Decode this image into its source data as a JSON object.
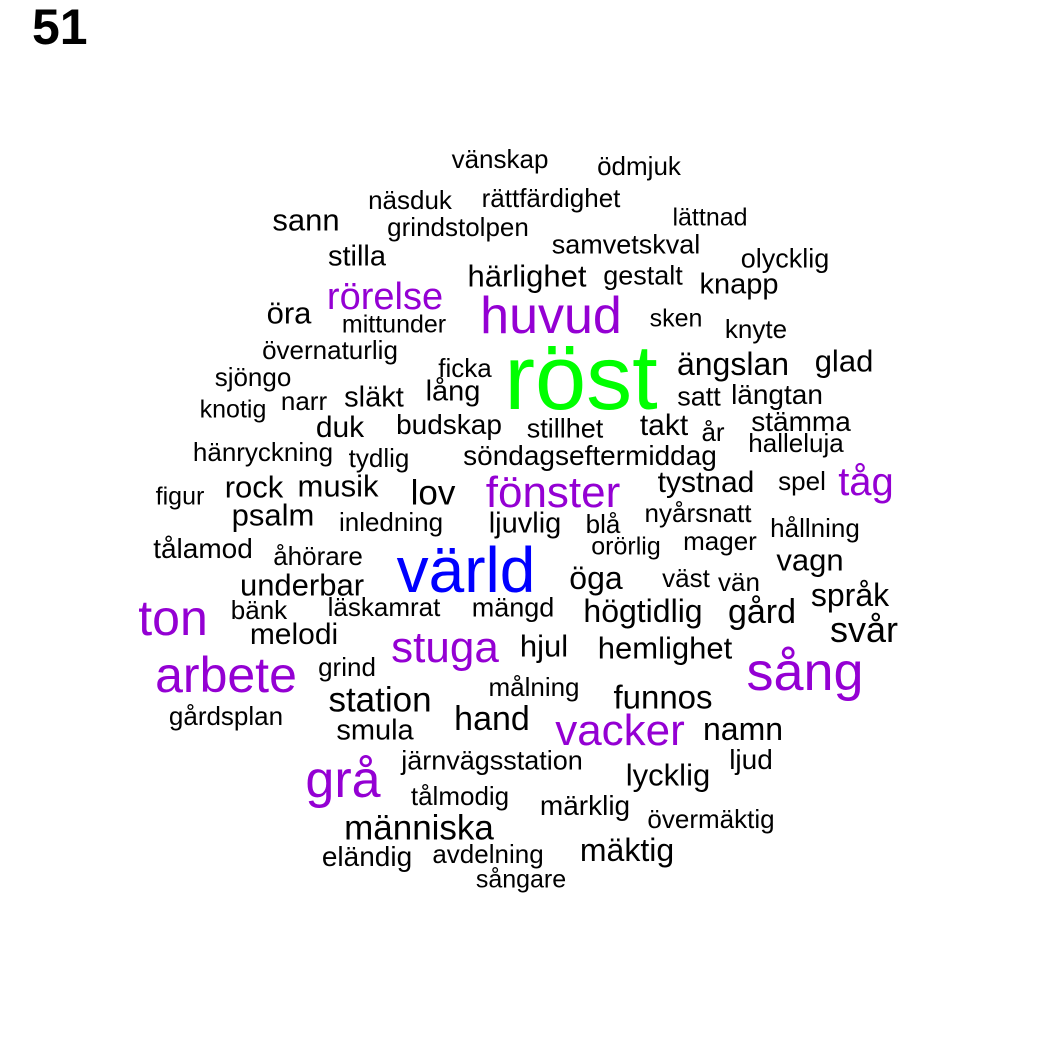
{
  "page_label": "51",
  "colors": {
    "large": "#00ff00",
    "medium": "#0000ff",
    "small": "#9400d3",
    "default": "#000000"
  },
  "words": [
    {
      "text": "röst",
      "tier": "large"
    },
    {
      "text": "värld",
      "tier": "medium"
    },
    {
      "text": "huvud",
      "tier": "small"
    },
    {
      "text": "fönster",
      "tier": "small"
    },
    {
      "text": "sång",
      "tier": "small"
    },
    {
      "text": "arbete",
      "tier": "small"
    },
    {
      "text": "ton",
      "tier": "small"
    },
    {
      "text": "grå",
      "tier": "small"
    },
    {
      "text": "stuga",
      "tier": "small"
    },
    {
      "text": "vacker",
      "tier": "small"
    },
    {
      "text": "rörelse",
      "tier": "small"
    },
    {
      "text": "tåg",
      "tier": "small"
    },
    {
      "text": "vänskap",
      "tier": "default"
    },
    {
      "text": "ödmjuk",
      "tier": "default"
    },
    {
      "text": "näsduk",
      "tier": "default"
    },
    {
      "text": "rättfärdighet",
      "tier": "default"
    },
    {
      "text": "sann",
      "tier": "default"
    },
    {
      "text": "grindstolpen",
      "tier": "default"
    },
    {
      "text": "lättnad",
      "tier": "default"
    },
    {
      "text": "samvetskval",
      "tier": "default"
    },
    {
      "text": "stilla",
      "tier": "default"
    },
    {
      "text": "olycklig",
      "tier": "default"
    },
    {
      "text": "härlighet",
      "tier": "default"
    },
    {
      "text": "gestalt",
      "tier": "default"
    },
    {
      "text": "knapp",
      "tier": "default"
    },
    {
      "text": "öra",
      "tier": "default"
    },
    {
      "text": "mittunder",
      "tier": "default"
    },
    {
      "text": "sken",
      "tier": "default"
    },
    {
      "text": "knyte",
      "tier": "default"
    },
    {
      "text": "övernaturlig",
      "tier": "default"
    },
    {
      "text": "ficka",
      "tier": "default"
    },
    {
      "text": "ängslan",
      "tier": "default"
    },
    {
      "text": "glad",
      "tier": "default"
    },
    {
      "text": "sjöngo",
      "tier": "default"
    },
    {
      "text": "lång",
      "tier": "default"
    },
    {
      "text": "satt",
      "tier": "default"
    },
    {
      "text": "längtan",
      "tier": "default"
    },
    {
      "text": "knotig",
      "tier": "default"
    },
    {
      "text": "narr",
      "tier": "default"
    },
    {
      "text": "släkt",
      "tier": "default"
    },
    {
      "text": "stämma",
      "tier": "default"
    },
    {
      "text": "duk",
      "tier": "default"
    },
    {
      "text": "budskap",
      "tier": "default"
    },
    {
      "text": "stillhet",
      "tier": "default"
    },
    {
      "text": "takt",
      "tier": "default"
    },
    {
      "text": "år",
      "tier": "default"
    },
    {
      "text": "halleluja",
      "tier": "default"
    },
    {
      "text": "hänryckning",
      "tier": "default"
    },
    {
      "text": "tydlig",
      "tier": "default"
    },
    {
      "text": "söndagseftermiddag",
      "tier": "default"
    },
    {
      "text": "tystnad",
      "tier": "default"
    },
    {
      "text": "spel",
      "tier": "default"
    },
    {
      "text": "figur",
      "tier": "default"
    },
    {
      "text": "rock",
      "tier": "default"
    },
    {
      "text": "musik",
      "tier": "default"
    },
    {
      "text": "lov",
      "tier": "default"
    },
    {
      "text": "nyårsnatt",
      "tier": "default"
    },
    {
      "text": "psalm",
      "tier": "default"
    },
    {
      "text": "inledning",
      "tier": "default"
    },
    {
      "text": "ljuvlig",
      "tier": "default"
    },
    {
      "text": "blå",
      "tier": "default"
    },
    {
      "text": "hållning",
      "tier": "default"
    },
    {
      "text": "orörlig",
      "tier": "default"
    },
    {
      "text": "mager",
      "tier": "default"
    },
    {
      "text": "tålamod",
      "tier": "default"
    },
    {
      "text": "åhörare",
      "tier": "default"
    },
    {
      "text": "vagn",
      "tier": "default"
    },
    {
      "text": "öga",
      "tier": "default"
    },
    {
      "text": "väst",
      "tier": "default"
    },
    {
      "text": "vän",
      "tier": "default"
    },
    {
      "text": "underbar",
      "tier": "default"
    },
    {
      "text": "språk",
      "tier": "default"
    },
    {
      "text": "bänk",
      "tier": "default"
    },
    {
      "text": "läskamrat",
      "tier": "default"
    },
    {
      "text": "mängd",
      "tier": "default"
    },
    {
      "text": "högtidlig",
      "tier": "default"
    },
    {
      "text": "gård",
      "tier": "default"
    },
    {
      "text": "svår",
      "tier": "default"
    },
    {
      "text": "melodi",
      "tier": "default"
    },
    {
      "text": "hjul",
      "tier": "default"
    },
    {
      "text": "hemlighet",
      "tier": "default"
    },
    {
      "text": "grind",
      "tier": "default"
    },
    {
      "text": "målning",
      "tier": "default"
    },
    {
      "text": "station",
      "tier": "default"
    },
    {
      "text": "funnos",
      "tier": "default"
    },
    {
      "text": "gårdsplan",
      "tier": "default"
    },
    {
      "text": "hand",
      "tier": "default"
    },
    {
      "text": "smula",
      "tier": "default"
    },
    {
      "text": "namn",
      "tier": "default"
    },
    {
      "text": "järnvägsstation",
      "tier": "default"
    },
    {
      "text": "ljud",
      "tier": "default"
    },
    {
      "text": "lycklig",
      "tier": "default"
    },
    {
      "text": "tålmodig",
      "tier": "default"
    },
    {
      "text": "märklig",
      "tier": "default"
    },
    {
      "text": "övermäktig",
      "tier": "default"
    },
    {
      "text": "människa",
      "tier": "default"
    },
    {
      "text": "mäktig",
      "tier": "default"
    },
    {
      "text": "eländig",
      "tier": "default"
    },
    {
      "text": "avdelning",
      "tier": "default"
    },
    {
      "text": "sångare",
      "tier": "default"
    }
  ]
}
